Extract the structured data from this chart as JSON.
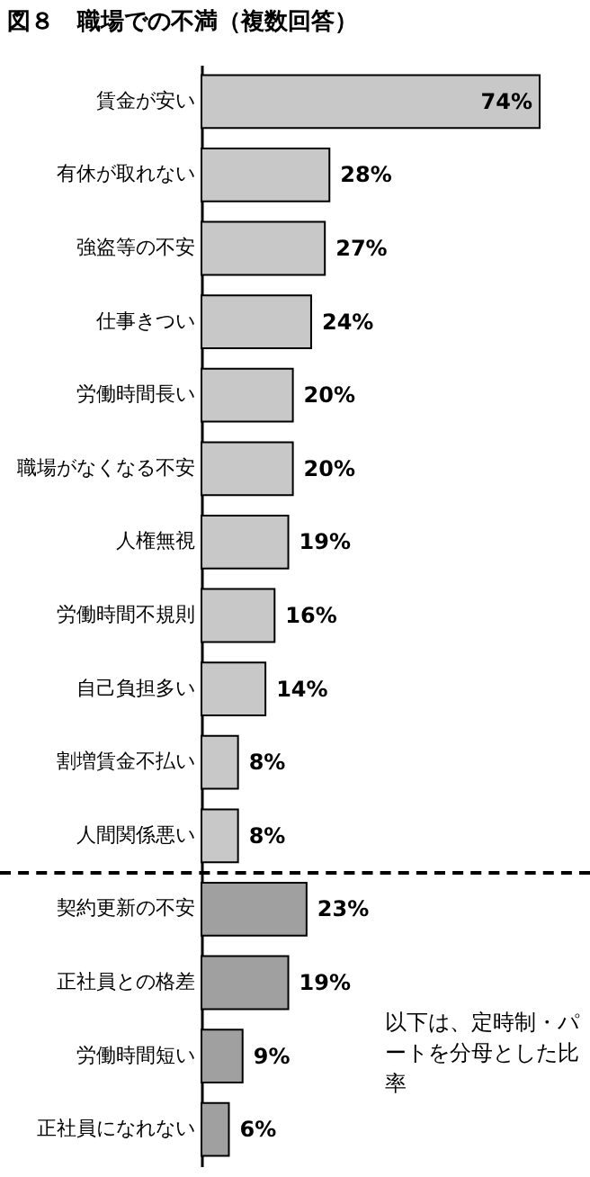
{
  "chart_data": {
    "type": "bar",
    "orientation": "horizontal",
    "title": "図８　職場での不満（複数回答）",
    "categories": [
      "賃金が安い",
      "有休が取れない",
      "強盗等の不安",
      "仕事きつい",
      "労働時間長い",
      "職場がなくなる不安",
      "人権無視",
      "労働時間不規則",
      "自己負担多い",
      "割増賃金不払い",
      "人間関係悪い",
      "契約更新の不安",
      "正社員との格差",
      "労働時間短い",
      "正社員になれない"
    ],
    "values": [
      74,
      28,
      27,
      24,
      20,
      20,
      19,
      16,
      14,
      8,
      8,
      23,
      19,
      9,
      6
    ],
    "value_labels": [
      "74%",
      "28%",
      "27%",
      "24%",
      "20%",
      "20%",
      "19%",
      "16%",
      "14%",
      "8%",
      "8%",
      "23%",
      "19%",
      "9%",
      "6%"
    ],
    "colors": [
      "#c8c8c8",
      "#c8c8c8",
      "#c8c8c8",
      "#c8c8c8",
      "#c8c8c8",
      "#c8c8c8",
      "#c8c8c8",
      "#c8c8c8",
      "#c8c8c8",
      "#c8c8c8",
      "#c8c8c8",
      "#a0a0a0",
      "#a0a0a0",
      "#a0a0a0",
      "#a0a0a0"
    ],
    "annotations": [
      "以下は、定時制・パートを分母とした比率"
    ]
  }
}
